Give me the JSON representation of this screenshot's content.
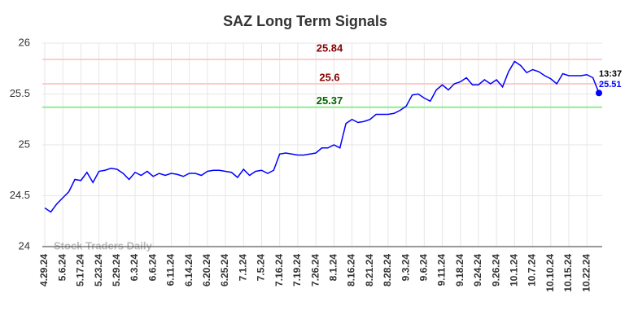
{
  "chart_data": {
    "type": "line",
    "title": "SAZ Long Term Signals",
    "watermark": "Stock Traders Daily",
    "categories": [
      "4.29.24",
      null,
      null,
      "5.6.24",
      null,
      null,
      "5.17.24",
      null,
      null,
      "5.23.24",
      null,
      null,
      "5.29.24",
      null,
      null,
      "6.3.24",
      null,
      null,
      "6.6.24",
      null,
      null,
      "6.11.24",
      null,
      null,
      "6.14.24",
      null,
      null,
      "6.20.24",
      null,
      null,
      "6.25.24",
      null,
      null,
      "7.1.24",
      null,
      null,
      "7.5.24",
      null,
      null,
      "7.16.24",
      null,
      null,
      "7.19.24",
      null,
      null,
      "7.26.24",
      null,
      null,
      "8.1.24",
      null,
      null,
      "8.16.24",
      null,
      null,
      "8.21.24",
      null,
      null,
      "8.28.24",
      null,
      null,
      "9.3.24",
      null,
      null,
      "9.6.24",
      null,
      null,
      "9.11.24",
      null,
      null,
      "9.18.24",
      null,
      null,
      "9.24.24",
      null,
      null,
      "9.26.24",
      null,
      null,
      "10.1.24",
      null,
      null,
      "10.7.24",
      null,
      null,
      "10.10.24",
      null,
      null,
      "10.15.24",
      null,
      null,
      "10.22.24",
      null,
      null
    ],
    "series": [
      {
        "color": "#0000ff",
        "values": [
          24.38,
          24.34,
          24.42,
          24.48,
          24.54,
          24.66,
          24.65,
          24.73,
          24.63,
          24.74,
          24.75,
          24.77,
          24.76,
          24.72,
          24.66,
          24.73,
          24.7,
          24.74,
          24.69,
          24.72,
          24.7,
          24.72,
          24.71,
          24.69,
          24.72,
          24.72,
          24.7,
          24.74,
          24.75,
          24.75,
          24.74,
          24.73,
          24.68,
          24.76,
          24.7,
          24.74,
          24.75,
          24.72,
          24.75,
          24.91,
          24.92,
          24.91,
          24.9,
          24.9,
          24.91,
          24.92,
          24.97,
          24.97,
          25.0,
          24.97,
          25.21,
          25.25,
          25.22,
          25.23,
          25.25,
          25.3,
          25.3,
          25.3,
          25.31,
          25.34,
          25.38,
          25.49,
          25.5,
          25.46,
          25.43,
          25.54,
          25.59,
          25.54,
          25.6,
          25.62,
          25.66,
          25.59,
          25.59,
          25.64,
          25.6,
          25.64,
          25.57,
          25.72,
          25.82,
          25.78,
          25.71,
          25.74,
          25.72,
          25.68,
          25.65,
          25.6,
          25.7,
          25.68,
          25.68,
          25.68,
          25.69,
          25.66,
          25.51
        ]
      }
    ],
    "hlines": [
      {
        "value": 25.84,
        "label": "25.84",
        "color": "#ffcccc",
        "label_color": "#8b0000"
      },
      {
        "value": 25.6,
        "label": "25.6",
        "color": "#ffcccc",
        "label_color": "#8b0000"
      },
      {
        "value": 25.37,
        "label": "25.37",
        "color": "#90ee90",
        "label_color": "#006400"
      }
    ],
    "last_point": {
      "time": "13:37",
      "value_label": "25.51"
    },
    "ylim": [
      24,
      26
    ],
    "yticks": [
      24,
      24.5,
      25,
      25.5,
      26
    ],
    "grid": true
  }
}
